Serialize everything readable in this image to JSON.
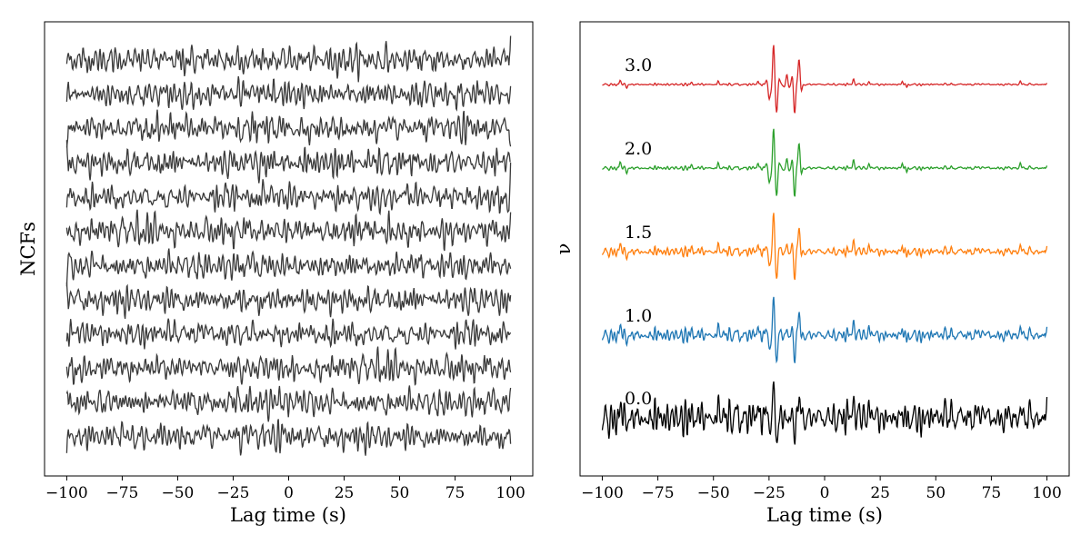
{
  "chart_data": [
    {
      "type": "line",
      "title": "",
      "xlabel": "Lag time (s)",
      "ylabel": "NCFs",
      "xlim": [
        -110,
        110
      ],
      "xticks": [
        "−100",
        "−75",
        "−50",
        "−25",
        "0",
        "25",
        "50",
        "75",
        "100"
      ],
      "xtick_values": [
        -100,
        -75,
        -50,
        -25,
        0,
        25,
        50,
        75,
        100
      ],
      "yticks": [],
      "grid": false,
      "trace_count": 12,
      "trace_color": "#3a3a3a",
      "x_range": [
        -100,
        100
      ]
    },
    {
      "type": "line",
      "title": "",
      "xlabel": "Lag time (s)",
      "ylabel": "ν",
      "xlim": [
        -110,
        110
      ],
      "xticks": [
        "−100",
        "−75",
        "−50",
        "−25",
        "0",
        "25",
        "50",
        "75",
        "100"
      ],
      "xtick_values": [
        -100,
        -75,
        -50,
        -25,
        0,
        25,
        50,
        75,
        100
      ],
      "yticks": [],
      "grid": false,
      "x_range": [
        -100,
        100
      ],
      "series": [
        {
          "name": "3.0",
          "color": "#d62728"
        },
        {
          "name": "2.0",
          "color": "#2ca02c"
        },
        {
          "name": "1.5",
          "color": "#ff7f0e"
        },
        {
          "name": "1.0",
          "color": "#1f77b4"
        },
        {
          "name": "0.0",
          "color": "#000000"
        }
      ]
    }
  ]
}
